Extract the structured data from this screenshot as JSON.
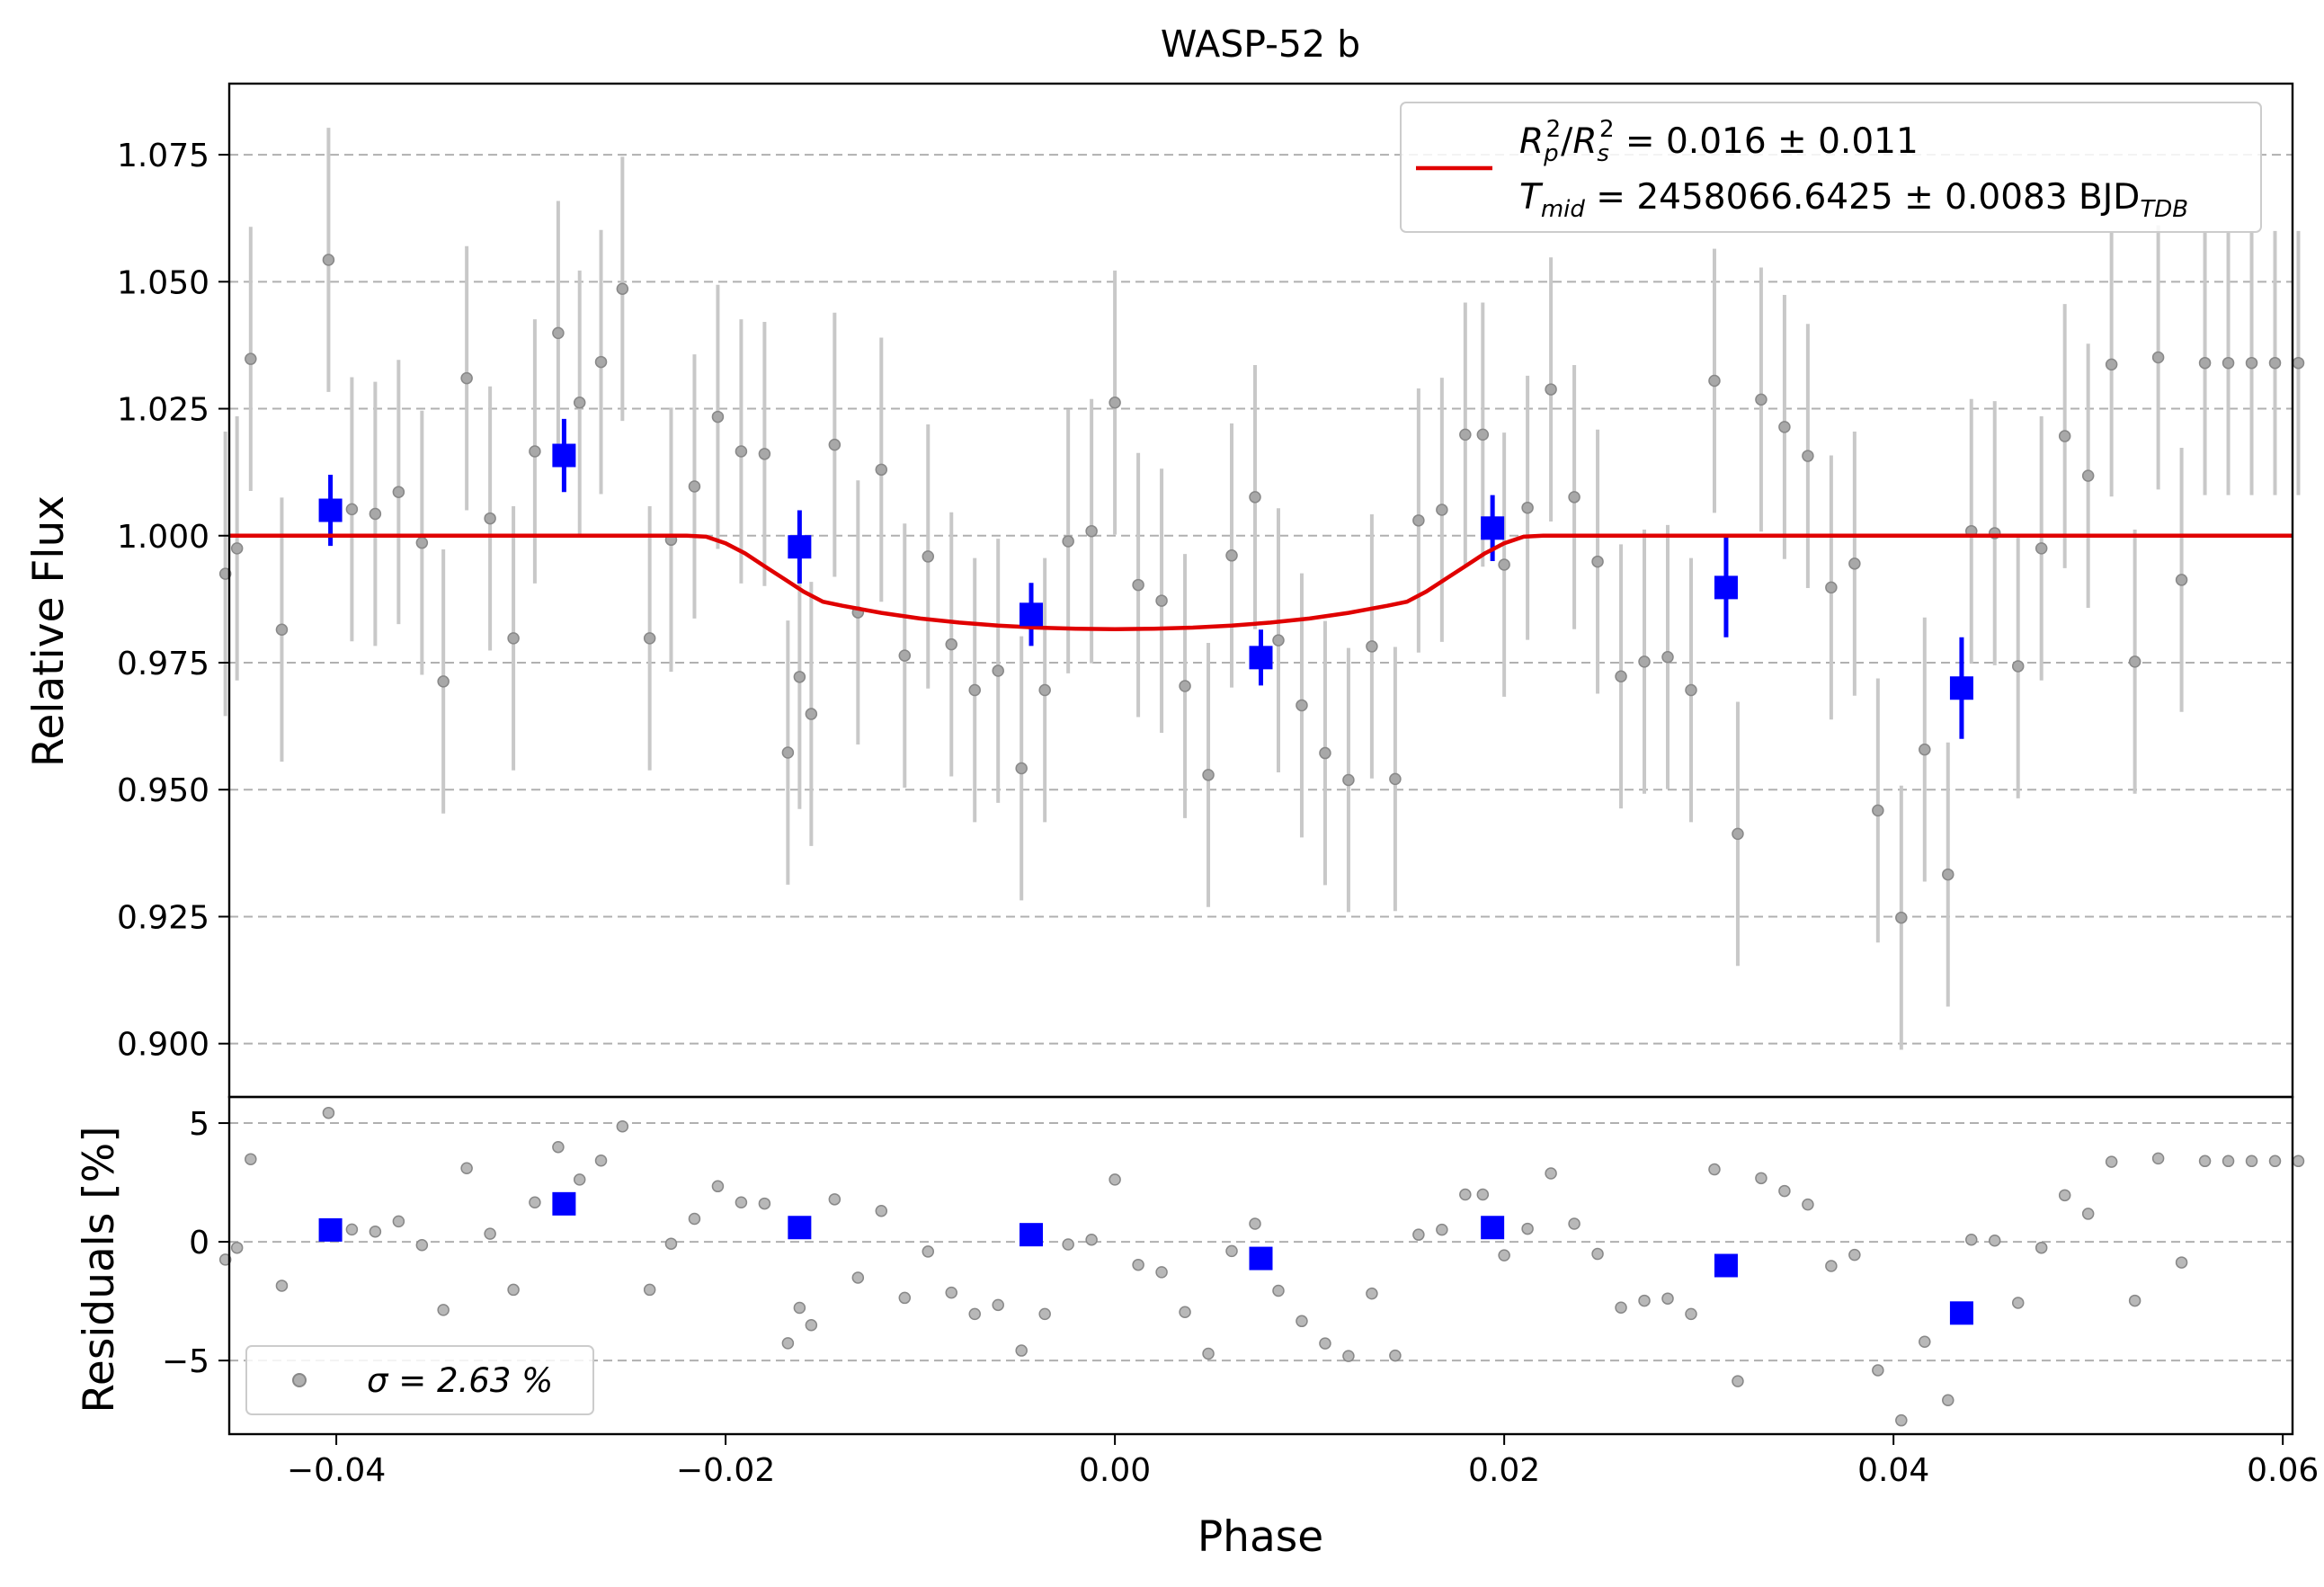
{
  "chart_data": [
    {
      "type": "scatter",
      "title": "WASP-52 b",
      "xlabel": "",
      "ylabel": "Relative Flux",
      "xlim": [
        -0.0455,
        0.0605
      ],
      "ylim": [
        0.8895,
        1.089
      ],
      "grid": "y-dashed",
      "xticks": [
        -0.04,
        -0.02,
        0.0,
        0.02,
        0.04,
        0.06
      ],
      "yticks": [
        0.9,
        0.925,
        0.95,
        0.975,
        1.0,
        1.025,
        1.05,
        1.075
      ],
      "ytick_labels": [
        "0.900",
        "0.925",
        "0.950",
        "0.975",
        "1.000",
        "1.025",
        "1.050",
        "1.075"
      ],
      "legend_placement": "top-right",
      "legend_fit_line1": "R_p^2/R_s^2 = 0.016 ± 0.011",
      "legend_fit_line2": "T_mid = 2458066.6425 ± 0.0083 BJD_TDB",
      "raw": {
        "x": [
          -0.0457,
          -0.0451,
          -0.0444,
          -0.0428,
          -0.0404,
          -0.0392,
          -0.038,
          -0.0368,
          -0.0356,
          -0.0345,
          -0.0333,
          -0.0321,
          -0.0309,
          -0.0298,
          -0.0286,
          -0.0275,
          -0.0264,
          -0.0253,
          -0.0239,
          -0.0228,
          -0.0216,
          -0.0204,
          -0.0192,
          -0.018,
          -0.0168,
          -0.0162,
          -0.0156,
          -0.0144,
          -0.0132,
          -0.012,
          -0.0108,
          -0.0096,
          -0.0084,
          -0.0072,
          -0.006,
          -0.0048,
          -0.0036,
          -0.0024,
          -0.0012,
          0.0,
          0.0012,
          0.0024,
          0.0036,
          0.0048,
          0.006,
          0.0072,
          0.0084,
          0.0096,
          0.0108,
          0.012,
          0.0132,
          0.0144,
          0.0156,
          0.0168,
          0.018,
          0.0189,
          0.02,
          0.0212,
          0.0224,
          0.0236,
          0.0248,
          0.026,
          0.0272,
          0.0284,
          0.0296,
          0.0308,
          0.032,
          0.0332,
          0.0344,
          0.0356,
          0.0368,
          0.038,
          0.0392,
          0.0404,
          0.0416,
          0.0428,
          0.044,
          0.0452,
          0.0464,
          0.0476,
          0.0488,
          0.05,
          0.0512,
          0.0524,
          0.0536,
          0.0548,
          0.056,
          0.0572,
          0.0584,
          0.0596,
          0.0608
        ],
        "y": [
          0.9925,
          0.9975,
          1.0348,
          0.9815,
          1.0543,
          1.0052,
          1.0043,
          1.0086,
          0.9986,
          0.9713,
          1.031,
          1.0034,
          0.9798,
          1.0166,
          1.0399,
          1.0262,
          1.0342,
          1.0486,
          0.9798,
          0.9992,
          1.0097,
          1.0234,
          1.0166,
          1.0161,
          0.9573,
          0.9722,
          0.9649,
          1.0179,
          0.9849,
          1.013,
          0.9764,
          0.9959,
          0.9786,
          0.9696,
          0.9734,
          0.9542,
          0.9696,
          0.9989,
          1.0009,
          1.0262,
          0.9903,
          0.9872,
          0.9704,
          0.9529,
          0.9961,
          1.0076,
          0.9794,
          0.9666,
          0.9572,
          0.9519,
          0.9782,
          0.9521,
          1.003,
          1.0051,
          1.0199,
          1.0199,
          0.9943,
          1.0055,
          1.0288,
          1.0076,
          0.9949,
          0.9723,
          0.9752,
          0.9761,
          0.9696,
          1.0305,
          0.9413,
          1.0268,
          1.0214,
          1.0157,
          0.9898,
          0.9945,
          0.9459,
          0.9248,
          0.9579,
          0.9333,
          1.0009,
          1.0005,
          0.9743,
          0.9975,
          1.0196,
          1.0118,
          1.0337,
          0.9752,
          1.0351,
          0.9913,
          1.034,
          1.034,
          1.034,
          1.034,
          1.034
        ],
        "err": [
          0.028,
          0.026,
          0.026,
          0.026,
          0.026,
          0.026,
          0.026,
          0.026,
          0.026,
          0.026,
          0.026,
          0.026,
          0.026,
          0.026,
          0.026,
          0.026,
          0.026,
          0.026,
          0.026,
          0.026,
          0.026,
          0.026,
          0.026,
          0.026,
          0.026,
          0.026,
          0.026,
          0.026,
          0.026,
          0.026,
          0.026,
          0.026,
          0.026,
          0.026,
          0.026,
          0.026,
          0.026,
          0.026,
          0.026,
          0.026,
          0.026,
          0.026,
          0.026,
          0.026,
          0.026,
          0.026,
          0.026,
          0.026,
          0.026,
          0.026,
          0.026,
          0.026,
          0.026,
          0.026,
          0.026,
          0.026,
          0.026,
          0.026,
          0.026,
          0.026,
          0.026,
          0.026,
          0.026,
          0.026,
          0.026,
          0.026,
          0.026,
          0.026,
          0.026,
          0.026,
          0.026,
          0.026,
          0.026,
          0.026,
          0.026,
          0.026,
          0.026,
          0.026,
          0.026,
          0.026,
          0.026,
          0.026,
          0.026,
          0.026,
          0.026,
          0.026,
          0.026,
          0.026,
          0.026,
          0.026,
          0.026
        ]
      },
      "binned": {
        "x": [
          -0.0403,
          -0.0283,
          -0.0162,
          -0.0043,
          0.0075,
          0.0194,
          0.0314,
          0.0435
        ],
        "y": [
          1.005,
          1.0158,
          0.9978,
          0.9845,
          0.976,
          1.0015,
          0.9898,
          0.97
        ],
        "err": [
          0.007,
          0.0072,
          0.0072,
          0.0062,
          0.0055,
          0.0065,
          0.0098,
          0.01
        ]
      },
      "model": {
        "x": [
          -0.0455,
          -0.022,
          -0.021,
          -0.02,
          -0.019,
          -0.018,
          -0.017,
          -0.016,
          -0.015,
          -0.014,
          -0.012,
          -0.01,
          -0.008,
          -0.006,
          -0.004,
          -0.002,
          0.0,
          0.002,
          0.004,
          0.006,
          0.008,
          0.01,
          0.012,
          0.014,
          0.015,
          0.016,
          0.017,
          0.018,
          0.019,
          0.02,
          0.021,
          0.022,
          0.0605
        ],
        "y": [
          1.0,
          1.0,
          0.9998,
          0.9985,
          0.9965,
          0.994,
          0.9915,
          0.989,
          0.987,
          0.9862,
          0.9848,
          0.9837,
          0.9829,
          0.9823,
          0.9819,
          0.9817,
          0.9816,
          0.9817,
          0.9819,
          0.9823,
          0.9829,
          0.9837,
          0.9848,
          0.9862,
          0.987,
          0.989,
          0.9915,
          0.994,
          0.9965,
          0.9985,
          0.9998,
          1.0,
          1.0
        ]
      },
      "colors": {
        "raw": "#808080",
        "errorbar": "#c8c8c8",
        "binned": "#0000ff",
        "model": "#e00000"
      }
    },
    {
      "type": "scatter",
      "title": "",
      "xlabel": "Phase",
      "ylabel": "Residuals [%]",
      "xlim": [
        -0.0455,
        0.0605
      ],
      "ylim": [
        -8.1,
        6.1
      ],
      "grid": "y-dashed",
      "xticks": [
        -0.04,
        -0.02,
        0.0,
        0.02,
        0.04,
        0.06
      ],
      "xtick_labels": [
        "−0.04",
        "−0.02",
        "0.00",
        "0.02",
        "0.04",
        "0.06"
      ],
      "yticks": [
        -5,
        0,
        5
      ],
      "ytick_labels": [
        "−5",
        "0",
        "5"
      ],
      "legend_placement": "bottom-left",
      "legend_sigma": "σ = 2.63 %",
      "binned_residuals": [
        0.5,
        1.6,
        0.6,
        0.3,
        -0.7,
        0.6,
        -1.0,
        -3.0
      ]
    }
  ]
}
